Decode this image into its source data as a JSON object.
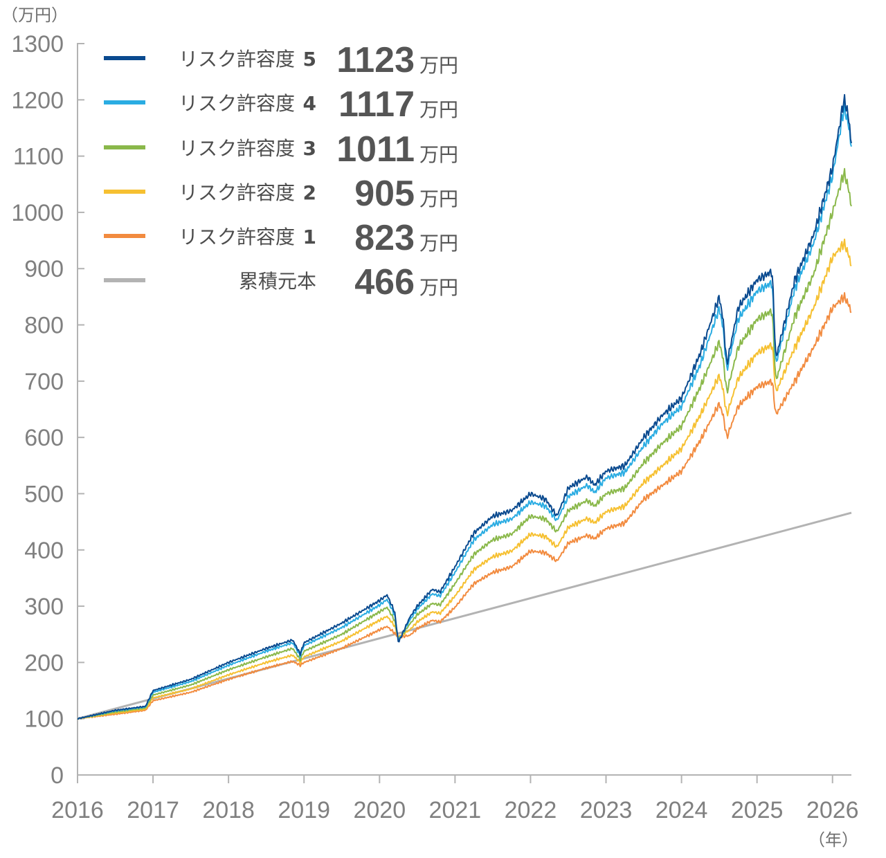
{
  "chart_data": {
    "type": "line",
    "y_unit_label": "（万円）",
    "x_unit_label": "（年）",
    "xlim": [
      2016,
      2026.25
    ],
    "ylim": [
      0,
      1300
    ],
    "y_ticks": [
      "0",
      "100",
      "200",
      "300",
      "400",
      "500",
      "600",
      "700",
      "800",
      "900",
      "1000",
      "1100",
      "1200",
      "1300"
    ],
    "x_ticks": [
      "2016",
      "2017",
      "2018",
      "2019",
      "2020",
      "2021",
      "2022",
      "2023",
      "2024",
      "2025",
      "2026"
    ],
    "grid": false,
    "legend_position": "top-left",
    "value_unit": "万円",
    "series": [
      {
        "name": "リスク許容度 5",
        "legend_label": "リスク許容度",
        "legend_num": "5",
        "final": "1123",
        "color": "#0a4a8f",
        "x": [
          2016,
          2016.5,
          2016.9,
          2017,
          2017.5,
          2018,
          2018.5,
          2018.85,
          2018.95,
          2019,
          2019.5,
          2020,
          2020.1,
          2020.2,
          2020.25,
          2020.4,
          2020.5,
          2020.7,
          2020.8,
          2021,
          2021.25,
          2021.5,
          2021.75,
          2022,
          2022.2,
          2022.35,
          2022.5,
          2022.75,
          2022.85,
          2023,
          2023.25,
          2023.5,
          2023.75,
          2024,
          2024.25,
          2024.5,
          2024.55,
          2024.6,
          2024.75,
          2025,
          2025.2,
          2025.25,
          2025.5,
          2025.75,
          2026,
          2026.15,
          2026.2,
          2026.25
        ],
        "y": [
          100,
          115,
          122,
          150,
          170,
          200,
          225,
          240,
          215,
          235,
          270,
          310,
          320,
          290,
          235,
          280,
          300,
          330,
          325,
          370,
          430,
          460,
          470,
          500,
          490,
          460,
          510,
          530,
          515,
          540,
          550,
          600,
          640,
          670,
          750,
          850,
          810,
          730,
          830,
          880,
          895,
          740,
          880,
          960,
          1080,
          1200,
          1180,
          1123
        ]
      },
      {
        "name": "リスク許容度 4",
        "legend_label": "リスク許容度",
        "legend_num": "4",
        "final": "1117",
        "color": "#2aace2",
        "x": [
          2016,
          2016.5,
          2016.9,
          2017,
          2017.5,
          2018,
          2018.5,
          2018.85,
          2018.95,
          2019,
          2019.5,
          2020,
          2020.1,
          2020.2,
          2020.25,
          2020.4,
          2020.5,
          2020.7,
          2020.8,
          2021,
          2021.25,
          2021.5,
          2021.75,
          2022,
          2022.2,
          2022.35,
          2022.5,
          2022.75,
          2022.85,
          2023,
          2023.25,
          2023.5,
          2023.75,
          2024,
          2024.25,
          2024.5,
          2024.55,
          2024.6,
          2024.75,
          2025,
          2025.2,
          2025.25,
          2025.5,
          2025.75,
          2026,
          2026.15,
          2026.2,
          2026.25
        ],
        "y": [
          100,
          114,
          121,
          147,
          166,
          195,
          220,
          235,
          212,
          230,
          262,
          302,
          312,
          285,
          238,
          275,
          295,
          322,
          318,
          360,
          418,
          445,
          455,
          485,
          478,
          452,
          495,
          515,
          502,
          528,
          538,
          585,
          625,
          655,
          730,
          830,
          795,
          720,
          810,
          860,
          875,
          730,
          865,
          945,
          1065,
          1185,
          1165,
          1117
        ]
      },
      {
        "name": "リスク許容度 3",
        "legend_label": "リスク許容度",
        "legend_num": "3",
        "final": "1011",
        "color": "#8ab84a",
        "x": [
          2016,
          2016.5,
          2016.9,
          2017,
          2017.5,
          2018,
          2018.5,
          2018.85,
          2018.95,
          2019,
          2019.5,
          2020,
          2020.1,
          2020.2,
          2020.25,
          2020.4,
          2020.5,
          2020.7,
          2020.8,
          2021,
          2021.25,
          2021.5,
          2021.75,
          2022,
          2022.2,
          2022.35,
          2022.5,
          2022.75,
          2022.85,
          2023,
          2023.25,
          2023.5,
          2023.75,
          2024,
          2024.25,
          2024.5,
          2024.55,
          2024.6,
          2024.75,
          2025,
          2025.2,
          2025.25,
          2025.5,
          2025.75,
          2026,
          2026.15,
          2026.2,
          2026.25
        ],
        "y": [
          100,
          112,
          119,
          142,
          160,
          187,
          210,
          225,
          205,
          220,
          250,
          290,
          298,
          275,
          240,
          268,
          285,
          305,
          302,
          340,
          392,
          418,
          428,
          460,
          455,
          432,
          470,
          488,
          478,
          500,
          510,
          555,
          590,
          620,
          690,
          770,
          740,
          680,
          760,
          810,
          825,
          700,
          815,
          890,
          1000,
          1070,
          1050,
          1011
        ]
      },
      {
        "name": "リスク許容度 2",
        "legend_label": "リスク許容度",
        "legend_num": "2",
        "final": "905",
        "color": "#f6c031",
        "x": [
          2016,
          2016.5,
          2016.9,
          2017,
          2017.5,
          2018,
          2018.5,
          2018.85,
          2018.95,
          2019,
          2019.5,
          2020,
          2020.1,
          2020.2,
          2020.25,
          2020.4,
          2020.5,
          2020.7,
          2020.8,
          2021,
          2021.25,
          2021.5,
          2021.75,
          2022,
          2022.2,
          2022.35,
          2022.5,
          2022.75,
          2022.85,
          2023,
          2023.25,
          2023.5,
          2023.75,
          2024,
          2024.25,
          2024.5,
          2024.55,
          2024.6,
          2024.75,
          2025,
          2025.2,
          2025.25,
          2025.5,
          2025.75,
          2026,
          2026.15,
          2026.2,
          2026.25
        ],
        "y": [
          100,
          110,
          117,
          137,
          153,
          178,
          200,
          213,
          200,
          210,
          238,
          275,
          282,
          265,
          245,
          258,
          272,
          290,
          287,
          318,
          365,
          388,
          398,
          428,
          424,
          405,
          440,
          456,
          448,
          468,
          478,
          520,
          550,
          580,
          640,
          710,
          685,
          640,
          705,
          750,
          765,
          680,
          760,
          830,
          920,
          945,
          930,
          905
        ]
      },
      {
        "name": "リスク許容度 1",
        "legend_label": "リスク許容度",
        "legend_num": "1",
        "final": "823",
        "color": "#f28b3f",
        "x": [
          2016,
          2016.5,
          2016.9,
          2017,
          2017.5,
          2018,
          2018.5,
          2018.85,
          2018.95,
          2019,
          2019.5,
          2020,
          2020.1,
          2020.2,
          2020.25,
          2020.4,
          2020.5,
          2020.7,
          2020.8,
          2021,
          2021.25,
          2021.5,
          2021.75,
          2022,
          2022.2,
          2022.35,
          2022.5,
          2022.75,
          2022.85,
          2023,
          2023.25,
          2023.5,
          2023.75,
          2024,
          2024.25,
          2024.5,
          2024.55,
          2024.6,
          2024.75,
          2025,
          2025.2,
          2025.25,
          2025.5,
          2025.75,
          2026,
          2026.15,
          2026.2,
          2026.25
        ],
        "y": [
          100,
          108,
          115,
          132,
          147,
          170,
          190,
          202,
          195,
          200,
          225,
          258,
          264,
          252,
          245,
          248,
          260,
          275,
          272,
          298,
          340,
          360,
          370,
          398,
          395,
          380,
          412,
          426,
          420,
          438,
          448,
          490,
          515,
          540,
          595,
          660,
          640,
          600,
          655,
          690,
          700,
          640,
          700,
          760,
          830,
          850,
          840,
          823
        ]
      },
      {
        "name": "累積元本",
        "legend_label": "累積元本",
        "legend_num": "",
        "final": "466",
        "color": "#b3b3b3",
        "x": [
          2016,
          2026.25
        ],
        "y": [
          100,
          466
        ]
      }
    ]
  }
}
